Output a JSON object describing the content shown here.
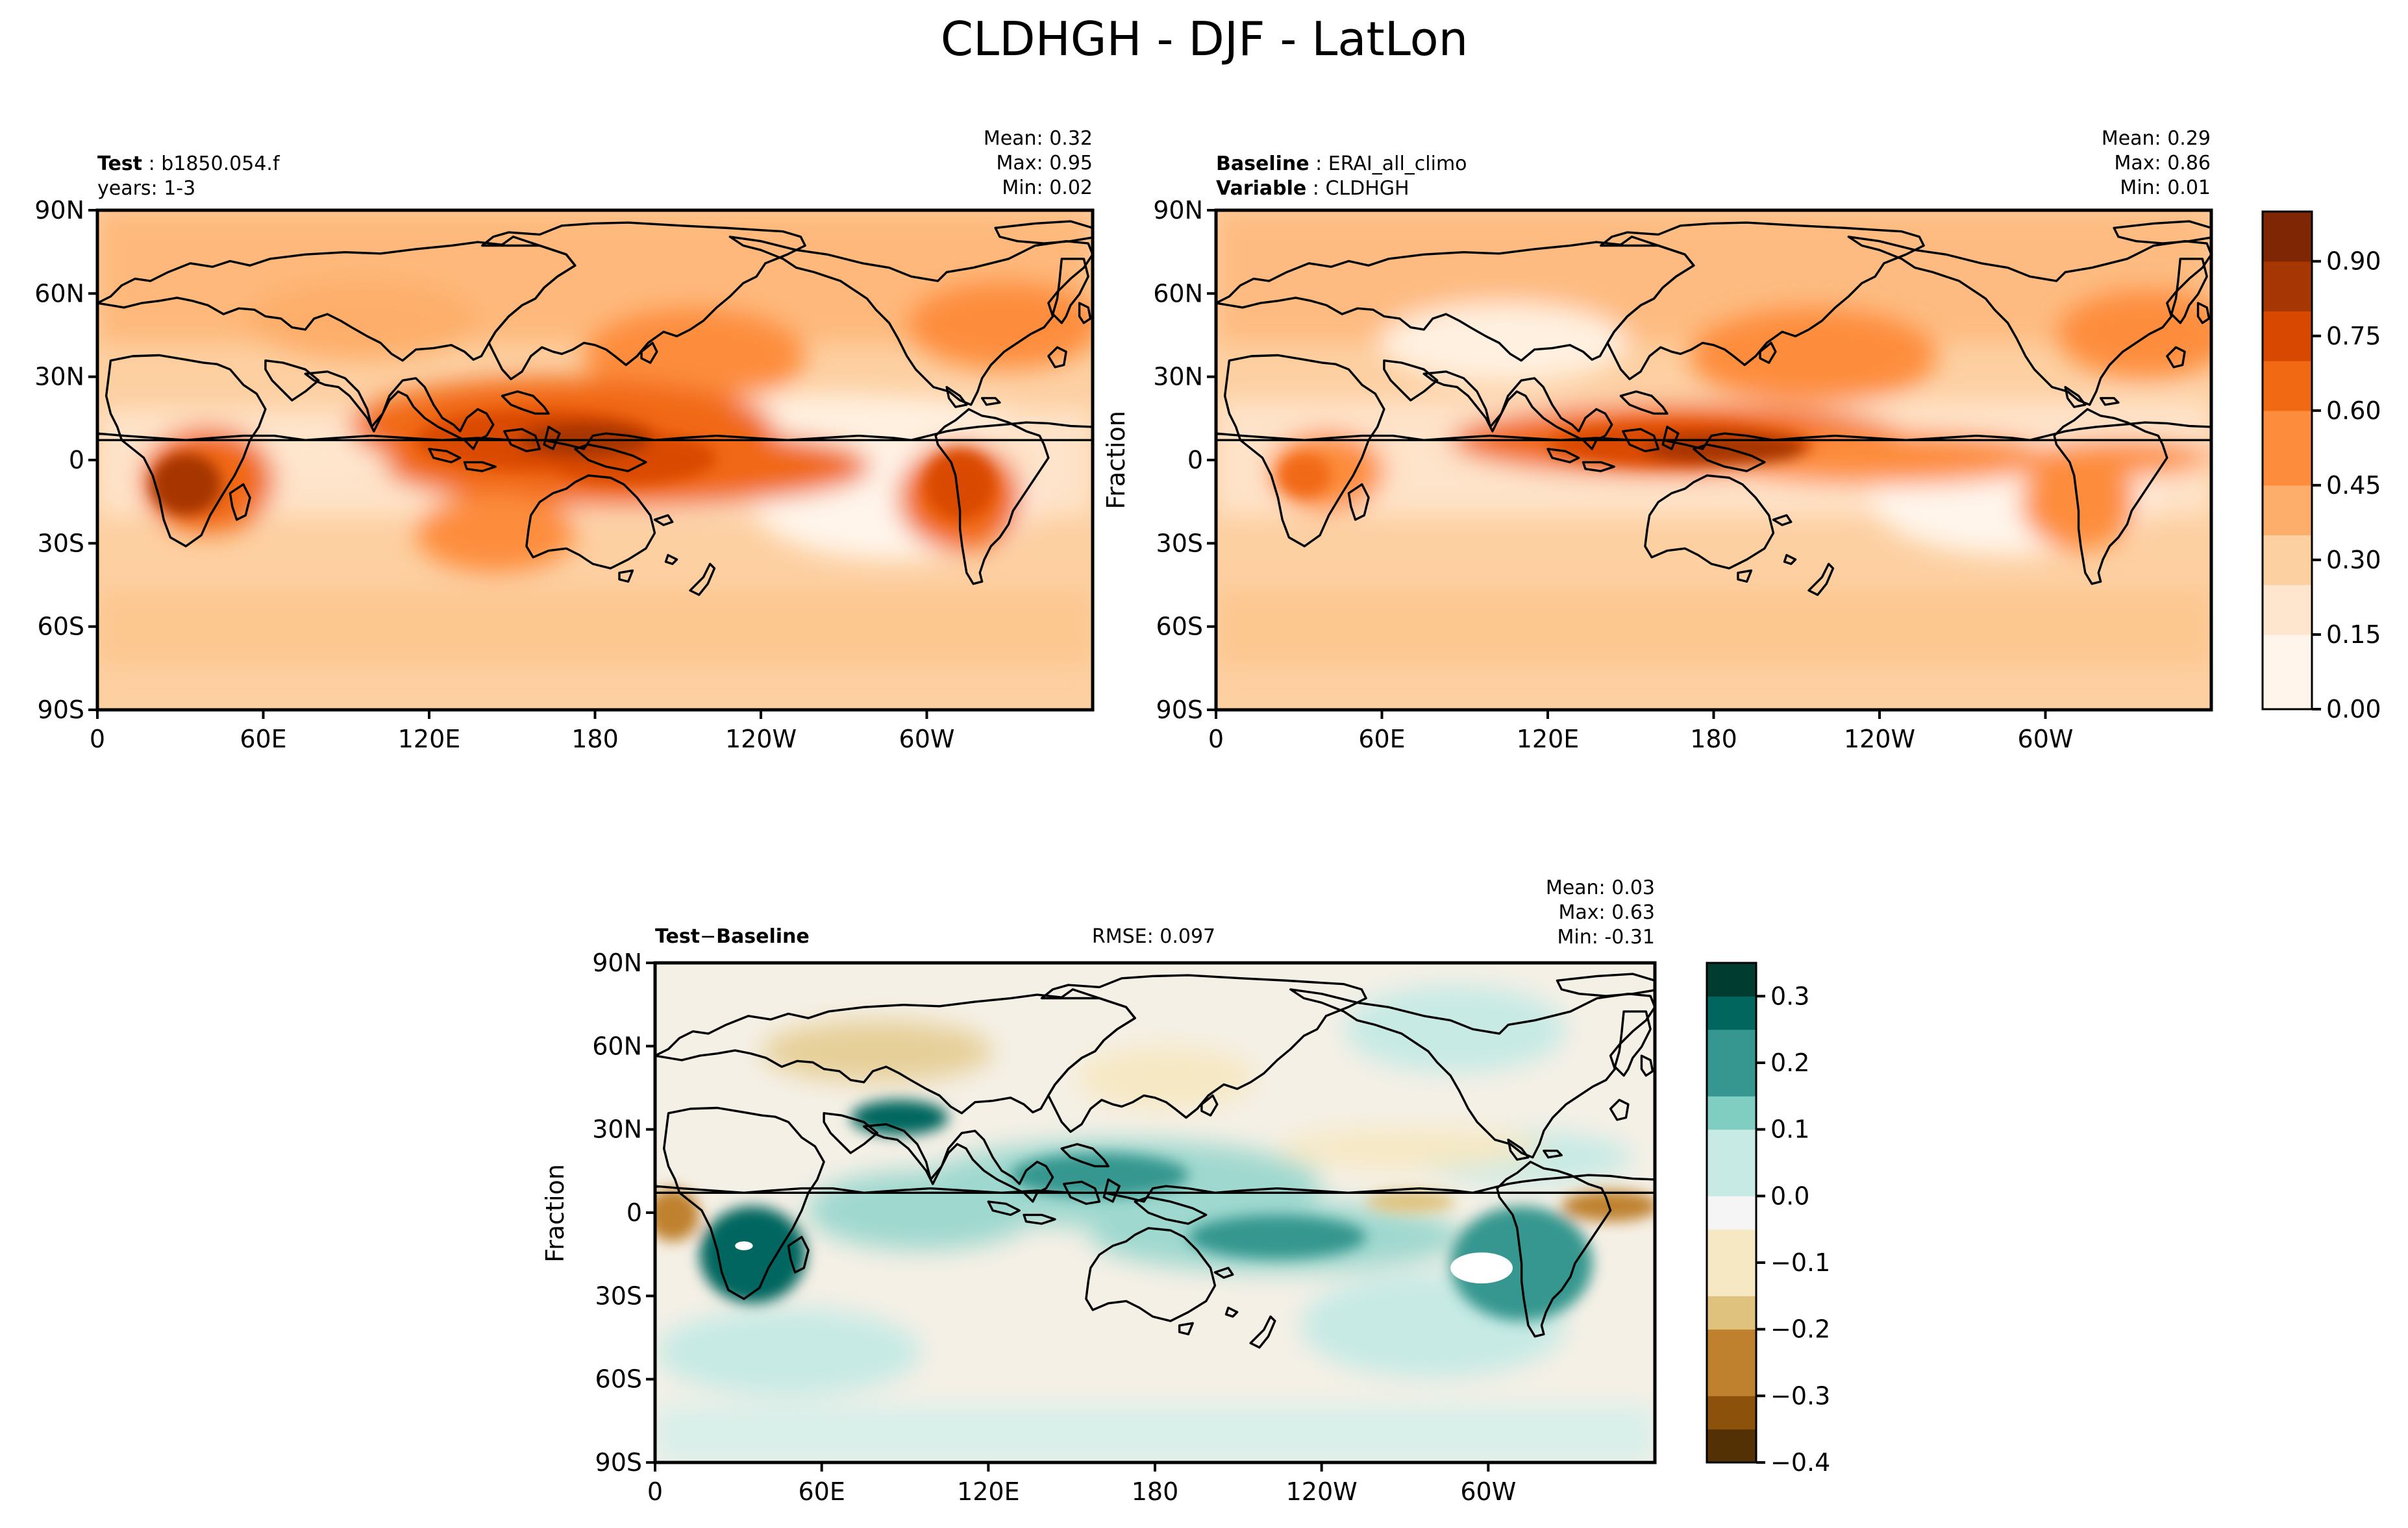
{
  "title": "CLDHGH - DJF - LatLon",
  "colors": {
    "orange_scale": [
      "#fff5eb",
      "#fee6ce",
      "#fdd0a2",
      "#fdae6b",
      "#fd8d3c",
      "#f16913",
      "#d94801",
      "#a63603",
      "#7f2704"
    ],
    "diverging_scale": [
      "#543005",
      "#8c510a",
      "#bf812d",
      "#dfc27d",
      "#f6e8c3",
      "#f5f5f5",
      "#c7eae5",
      "#80cdc1",
      "#35978f",
      "#01665e",
      "#003c30"
    ],
    "coast": "#000000"
  },
  "chart_data": [
    {
      "type": "heatmap",
      "id": "test",
      "label_bold": "Test",
      "label_value": "b1850.054.f",
      "sublabel": "years: 1-3",
      "stats": {
        "mean": "0.32",
        "max": "0.95",
        "min": "0.02"
      },
      "ylabel": "",
      "x_ticks": [
        "0",
        "60E",
        "120E",
        "180",
        "120W",
        "60W"
      ],
      "y_ticks": [
        "90N",
        "60N",
        "30N",
        "0",
        "30S",
        "60S",
        "90S"
      ],
      "xlim": [
        0,
        360
      ],
      "ylim": [
        -90,
        90
      ]
    },
    {
      "type": "heatmap",
      "id": "baseline",
      "label_bold": "Baseline",
      "label_value": "ERAI_all_climo",
      "label2_bold": "Variable",
      "label2_value": "CLDHGH",
      "stats": {
        "mean": "0.29",
        "max": "0.86",
        "min": "0.01"
      },
      "ylabel": "Fraction",
      "x_ticks": [
        "0",
        "60E",
        "120E",
        "180",
        "120W",
        "60W"
      ],
      "y_ticks": [
        "90N",
        "60N",
        "30N",
        "0",
        "30S",
        "60S",
        "90S"
      ],
      "xlim": [
        0,
        360
      ],
      "ylim": [
        -90,
        90
      ],
      "colorbar": {
        "ticks": [
          "0.00",
          "0.15",
          "0.30",
          "0.45",
          "0.60",
          "0.75",
          "0.90"
        ],
        "range": [
          0,
          1.0
        ]
      }
    },
    {
      "type": "heatmap",
      "id": "diff",
      "label_bold_a": "Test",
      "label_op": "−",
      "label_bold_b": "Baseline",
      "rmse": "RMSE: 0.097",
      "stats": {
        "mean": "0.03",
        "max": "0.63",
        "min": "-0.31"
      },
      "ylabel": "Fraction",
      "x_ticks": [
        "0",
        "60E",
        "120E",
        "180",
        "120W",
        "60W"
      ],
      "y_ticks": [
        "90N",
        "60N",
        "30N",
        "0",
        "30S",
        "60S",
        "90S"
      ],
      "xlim": [
        0,
        360
      ],
      "ylim": [
        -90,
        90
      ],
      "colorbar": {
        "ticks": [
          "0.3",
          "0.2",
          "0.1",
          "0.0",
          "−0.1",
          "−0.2",
          "−0.3",
          "−0.4"
        ],
        "range": [
          -0.4,
          0.35
        ]
      }
    }
  ]
}
